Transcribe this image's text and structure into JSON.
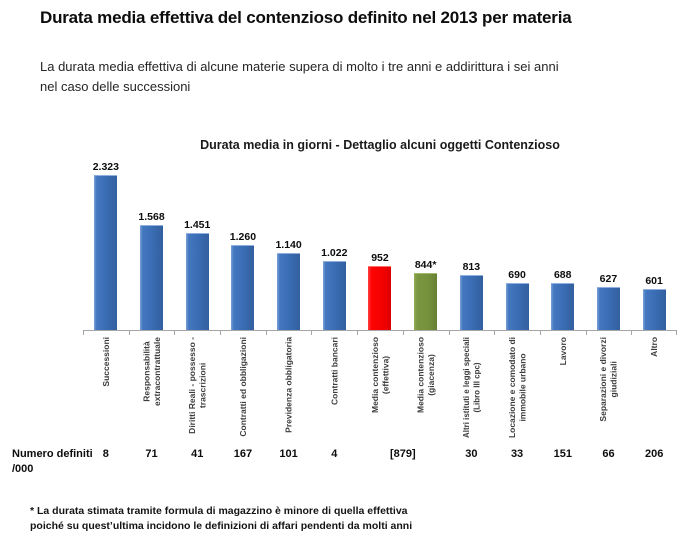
{
  "page": {
    "title": "Durata media effettiva del contenzioso definito nel 2013 per materia",
    "subtitle": "La durata media effettiva di alcune materie supera di molto i tre anni e addirittura i sei anni\nnel caso delle successioni",
    "footnote": "* La durata stimata tramite formula di magazzino è minore di quella effettiva\npoiché su quest’ultima incidono le definizioni di affari pendenti da molti anni"
  },
  "chart_data": {
    "type": "bar",
    "title": "Durata media in giorni - Dettaglio alcuni oggetti Contenzioso",
    "categories": [
      "Successioni",
      "Responsabilità\nextracontrattuale",
      "Diritti Reali - possesso -\ntrascrizioni",
      "Contratti ed obbligazioni",
      "Previdenza obbligatoria",
      "Contratti bancari",
      "Media contenzioso\n(effettiva)",
      "Media contenzioso\n(giacenza)",
      "Altri istituti e leggi speciali\n(Libro III cpc)",
      "Locazione e comodato di\nimmobile urbano",
      "Lavoro",
      "Separazioni e divorzi\ngiudiziali",
      "Altro"
    ],
    "values": [
      2323,
      1568,
      1451,
      1260,
      1140,
      1022,
      952,
      844,
      813,
      690,
      688,
      627,
      601
    ],
    "value_labels": [
      "2.323",
      "1.568",
      "1.451",
      "1.260",
      "1.140",
      "1.022",
      "952",
      "844*",
      "813",
      "690",
      "688",
      "627",
      "601"
    ],
    "bar_colors": [
      "blue",
      "blue",
      "blue",
      "blue",
      "blue",
      "blue",
      "red",
      "green",
      "blue",
      "blue",
      "blue",
      "blue",
      "blue"
    ],
    "palette": {
      "blue": "#3E74BE",
      "red": "#FE0000",
      "green": "#76923C"
    },
    "axis_color": "#A6A6A6",
    "ylim": [
      0,
      2400
    ],
    "unit": "giorni",
    "grid": false,
    "legend": false,
    "value_labels_position": "above-bars"
  },
  "numbers_row": {
    "label": "Numero definiti\n/000",
    "values": [
      "8",
      "71",
      "41",
      "167",
      "101",
      "4",
      "[879]",
      "30",
      "33",
      "151",
      "66",
      "206"
    ],
    "span2_index": 6
  }
}
